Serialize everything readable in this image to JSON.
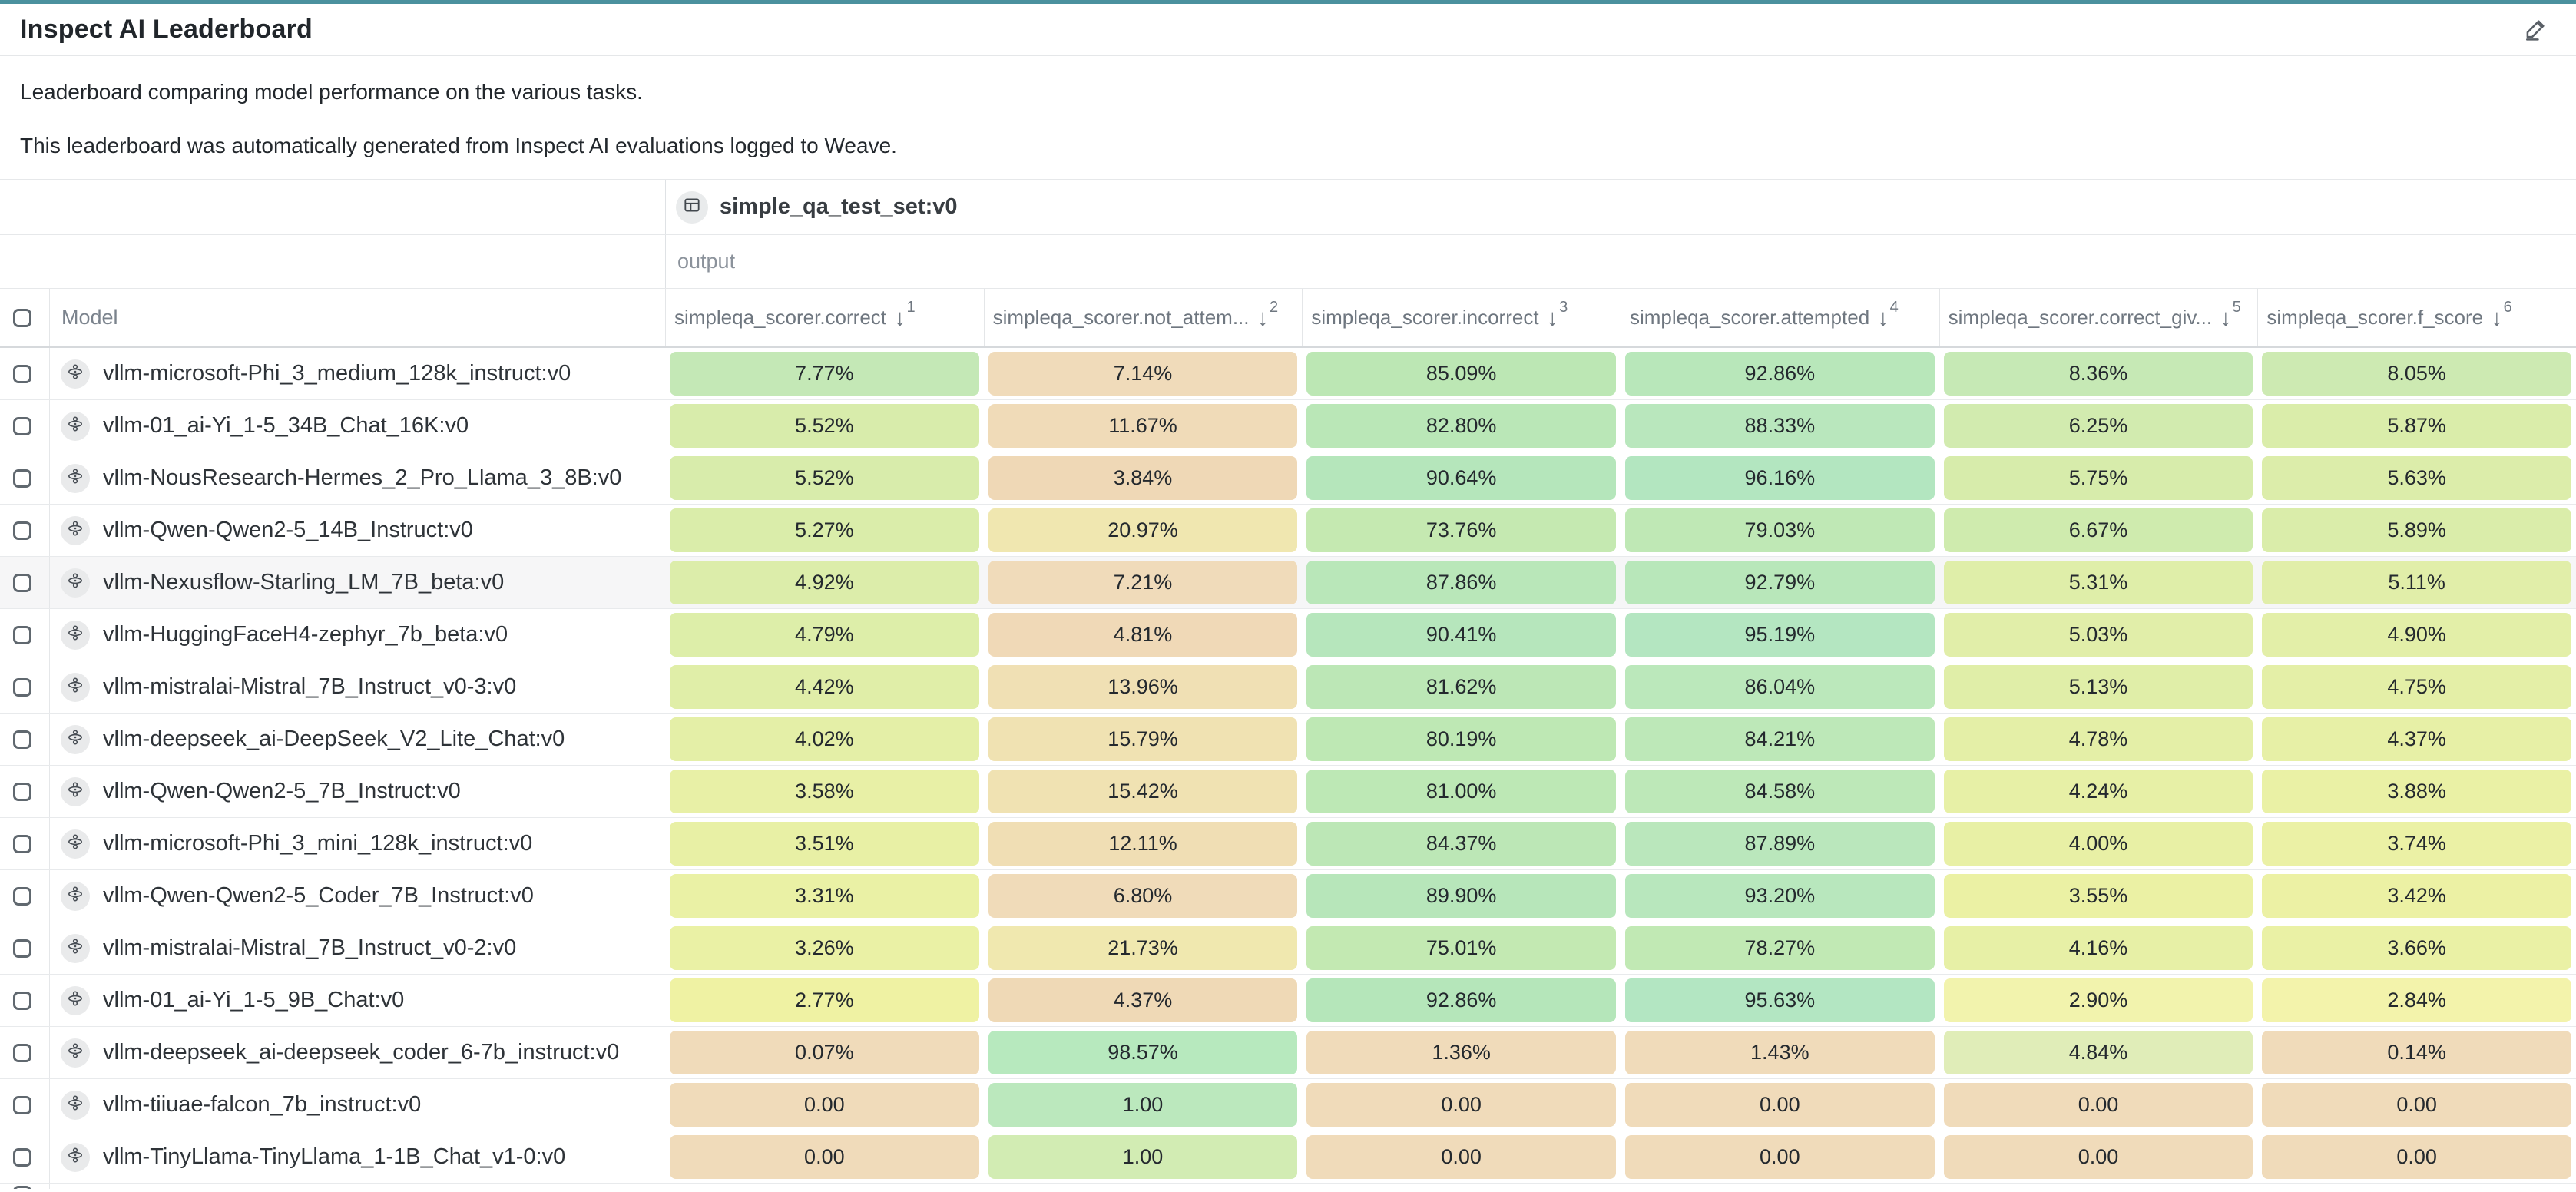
{
  "page": {
    "title": "Inspect AI Leaderboard",
    "description_1": "Leaderboard comparing model performance on the various tasks.",
    "description_2": "This leaderboard was automatically generated from Inspect AI evaluations logged to Weave.",
    "top_bar_color": "#4b919e"
  },
  "icons": {
    "edit": "pencil-icon",
    "dataset": "table-icon",
    "model": "model-icon"
  },
  "table": {
    "dataset_header": {
      "label": "simple_qa_test_set:v0"
    },
    "group_label": "output",
    "model_column_label": "Model",
    "columns": [
      {
        "label": "simpleqa_scorer.correct",
        "sort_arrow": "↓",
        "sort_order": "1"
      },
      {
        "label": "simpleqa_scorer.not_attem...",
        "sort_arrow": "↓",
        "sort_order": "2"
      },
      {
        "label": "simpleqa_scorer.incorrect",
        "sort_arrow": "↓",
        "sort_order": "3"
      },
      {
        "label": "simpleqa_scorer.attempted",
        "sort_arrow": "↓",
        "sort_order": "4"
      },
      {
        "label": "simpleqa_scorer.correct_giv...",
        "sort_arrow": "↓",
        "sort_order": "5"
      },
      {
        "label": "simpleqa_scorer.f_score",
        "sort_arrow": "↓",
        "sort_order": "6"
      }
    ],
    "rows": [
      {
        "model": "vllm-microsoft-Phi_3_medium_128k_instruct:v0",
        "hover": false,
        "values": [
          {
            "text": "7.77%",
            "bg": "#c4e8b6"
          },
          {
            "text": "7.14%",
            "bg": "#f0dbba"
          },
          {
            "text": "85.09%",
            "bg": "#bce7b4"
          },
          {
            "text": "92.86%",
            "bg": "#b8e7ba"
          },
          {
            "text": "8.36%",
            "bg": "#c6e9b5"
          },
          {
            "text": "8.05%",
            "bg": "#cdeab2"
          }
        ]
      },
      {
        "model": "vllm-01_ai-Yi_1-5_34B_Chat_16K:v0",
        "hover": false,
        "values": [
          {
            "text": "5.52%",
            "bg": "#d8ecab"
          },
          {
            "text": "11.67%",
            "bg": "#f0dbb8"
          },
          {
            "text": "82.80%",
            "bg": "#bae7b7"
          },
          {
            "text": "88.33%",
            "bg": "#b9e7bd"
          },
          {
            "text": "6.25%",
            "bg": "#d2ebaf"
          },
          {
            "text": "5.87%",
            "bg": "#daedaa"
          }
        ]
      },
      {
        "model": "vllm-NousResearch-Hermes_2_Pro_Llama_3_8B:v0",
        "hover": false,
        "values": [
          {
            "text": "5.52%",
            "bg": "#d8ecab"
          },
          {
            "text": "3.84%",
            "bg": "#efd8b6"
          },
          {
            "text": "90.64%",
            "bg": "#b5e6bb"
          },
          {
            "text": "96.16%",
            "bg": "#b3e6c0"
          },
          {
            "text": "5.75%",
            "bg": "#d7ecab"
          },
          {
            "text": "5.63%",
            "bg": "#dcedaa"
          }
        ]
      },
      {
        "model": "vllm-Qwen-Qwen2-5_14B_Instruct:v0",
        "hover": false,
        "values": [
          {
            "text": "5.27%",
            "bg": "#daedaa"
          },
          {
            "text": "20.97%",
            "bg": "#f0e7b0"
          },
          {
            "text": "73.76%",
            "bg": "#c5e9b1"
          },
          {
            "text": "79.03%",
            "bg": "#bfe8b5"
          },
          {
            "text": "6.67%",
            "bg": "#cfebae"
          },
          {
            "text": "5.89%",
            "bg": "#daedaa"
          }
        ]
      },
      {
        "model": "vllm-Nexusflow-Starling_LM_7B_beta:v0",
        "hover": true,
        "values": [
          {
            "text": "4.92%",
            "bg": "#dcedaa"
          },
          {
            "text": "7.21%",
            "bg": "#f0dbba"
          },
          {
            "text": "87.86%",
            "bg": "#b9e7b9"
          },
          {
            "text": "92.79%",
            "bg": "#b8e7ba"
          },
          {
            "text": "5.31%",
            "bg": "#dfeea9"
          },
          {
            "text": "5.11%",
            "bg": "#e1eea9"
          }
        ]
      },
      {
        "model": "vllm-HuggingFaceH4-zephyr_7b_beta:v0",
        "hover": false,
        "values": [
          {
            "text": "4.79%",
            "bg": "#ddeea9"
          },
          {
            "text": "4.81%",
            "bg": "#f0d9b7"
          },
          {
            "text": "90.41%",
            "bg": "#b6e6bc"
          },
          {
            "text": "95.19%",
            "bg": "#b4e6c1"
          },
          {
            "text": "5.03%",
            "bg": "#e1eea9"
          },
          {
            "text": "4.90%",
            "bg": "#e3efa8"
          }
        ]
      },
      {
        "model": "vllm-mistralai-Mistral_7B_Instruct_v0-3:v0",
        "hover": false,
        "values": [
          {
            "text": "4.42%",
            "bg": "#e0eea8"
          },
          {
            "text": "13.96%",
            "bg": "#f0e0b4"
          },
          {
            "text": "81.62%",
            "bg": "#bce7b6"
          },
          {
            "text": "86.04%",
            "bg": "#bbe8bb"
          },
          {
            "text": "5.13%",
            "bg": "#e0eea8"
          },
          {
            "text": "4.75%",
            "bg": "#e4efa7"
          }
        ]
      },
      {
        "model": "vllm-deepseek_ai-DeepSeek_V2_Lite_Chat:v0",
        "hover": false,
        "values": [
          {
            "text": "4.02%",
            "bg": "#e4efa7"
          },
          {
            "text": "15.79%",
            "bg": "#f0e2b2"
          },
          {
            "text": "80.19%",
            "bg": "#bee8b4"
          },
          {
            "text": "84.21%",
            "bg": "#bde8b8"
          },
          {
            "text": "4.78%",
            "bg": "#e4efa7"
          },
          {
            "text": "4.37%",
            "bg": "#e7f0a6"
          }
        ]
      },
      {
        "model": "vllm-Qwen-Qwen2-5_7B_Instruct:v0",
        "hover": false,
        "values": [
          {
            "text": "3.58%",
            "bg": "#e8f0a6"
          },
          {
            "text": "15.42%",
            "bg": "#f0e2b2"
          },
          {
            "text": "81.00%",
            "bg": "#bde8b5"
          },
          {
            "text": "84.58%",
            "bg": "#bde8b8"
          },
          {
            "text": "4.24%",
            "bg": "#e7f0a6"
          },
          {
            "text": "3.88%",
            "bg": "#eaf1a5"
          }
        ]
      },
      {
        "model": "vllm-microsoft-Phi_3_mini_128k_instruct:v0",
        "hover": false,
        "values": [
          {
            "text": "3.51%",
            "bg": "#e8f0a5"
          },
          {
            "text": "12.11%",
            "bg": "#f0deb4"
          },
          {
            "text": "84.37%",
            "bg": "#bce7b6"
          },
          {
            "text": "87.89%",
            "bg": "#bae7bc"
          },
          {
            "text": "4.00%",
            "bg": "#e8f0a5"
          },
          {
            "text": "3.74%",
            "bg": "#ebf1a5"
          }
        ]
      },
      {
        "model": "vllm-Qwen-Qwen2-5_Coder_7B_Instruct:v0",
        "hover": false,
        "values": [
          {
            "text": "3.31%",
            "bg": "#eaf1a5"
          },
          {
            "text": "6.80%",
            "bg": "#f0dbb9"
          },
          {
            "text": "89.90%",
            "bg": "#b7e6ba"
          },
          {
            "text": "93.20%",
            "bg": "#b8e7bd"
          },
          {
            "text": "3.55%",
            "bg": "#ebf1a4"
          },
          {
            "text": "3.42%",
            "bg": "#ecf1a4"
          }
        ]
      },
      {
        "model": "vllm-mistralai-Mistral_7B_Instruct_v0-2:v0",
        "hover": false,
        "values": [
          {
            "text": "3.26%",
            "bg": "#eaf1a5"
          },
          {
            "text": "21.73%",
            "bg": "#f0e8af"
          },
          {
            "text": "75.01%",
            "bg": "#c3e9b2"
          },
          {
            "text": "78.27%",
            "bg": "#c1e9b4"
          },
          {
            "text": "4.16%",
            "bg": "#e7f0a6"
          },
          {
            "text": "3.66%",
            "bg": "#eaf1a5"
          }
        ]
      },
      {
        "model": "vllm-01_ai-Yi_1-5_9B_Chat:v0",
        "hover": false,
        "values": [
          {
            "text": "2.77%",
            "bg": "#eff2a3"
          },
          {
            "text": "4.37%",
            "bg": "#efd9b6"
          },
          {
            "text": "92.86%",
            "bg": "#b5e6ba"
          },
          {
            "text": "95.63%",
            "bg": "#b3e6c2"
          },
          {
            "text": "2.90%",
            "bg": "#f2f3ad"
          },
          {
            "text": "2.84%",
            "bg": "#f3f3ab"
          }
        ]
      },
      {
        "model": "vllm-deepseek_ai-deepseek_coder_6-7b_instruct:v0",
        "hover": false,
        "values": [
          {
            "text": "0.07%",
            "bg": "#f0dbba"
          },
          {
            "text": "98.57%",
            "bg": "#b7e9be"
          },
          {
            "text": "1.36%",
            "bg": "#f0dbba"
          },
          {
            "text": "1.43%",
            "bg": "#f0dbba"
          },
          {
            "text": "4.84%",
            "bg": "#e0edb8"
          },
          {
            "text": "0.14%",
            "bg": "#f0dbba"
          }
        ]
      },
      {
        "model": "vllm-tiiuae-falcon_7b_instruct:v0",
        "hover": false,
        "values": [
          {
            "text": "0.00",
            "bg": "#f0dbba"
          },
          {
            "text": "1.00",
            "bg": "#bbe8bd"
          },
          {
            "text": "0.00",
            "bg": "#f0dbba"
          },
          {
            "text": "0.00",
            "bg": "#f0dbba"
          },
          {
            "text": "0.00",
            "bg": "#f0dbba"
          },
          {
            "text": "0.00",
            "bg": "#f0dbba"
          }
        ]
      },
      {
        "model": "vllm-TinyLlama-TinyLlama_1-1B_Chat_v1-0:v0",
        "hover": false,
        "values": [
          {
            "text": "0.00",
            "bg": "#f0dbba"
          },
          {
            "text": "1.00",
            "bg": "#d2ecb3"
          },
          {
            "text": "0.00",
            "bg": "#f0dbba"
          },
          {
            "text": "0.00",
            "bg": "#f0dbba"
          },
          {
            "text": "0.00",
            "bg": "#f0dbba"
          },
          {
            "text": "0.00",
            "bg": "#f0dbba"
          }
        ]
      }
    ]
  }
}
